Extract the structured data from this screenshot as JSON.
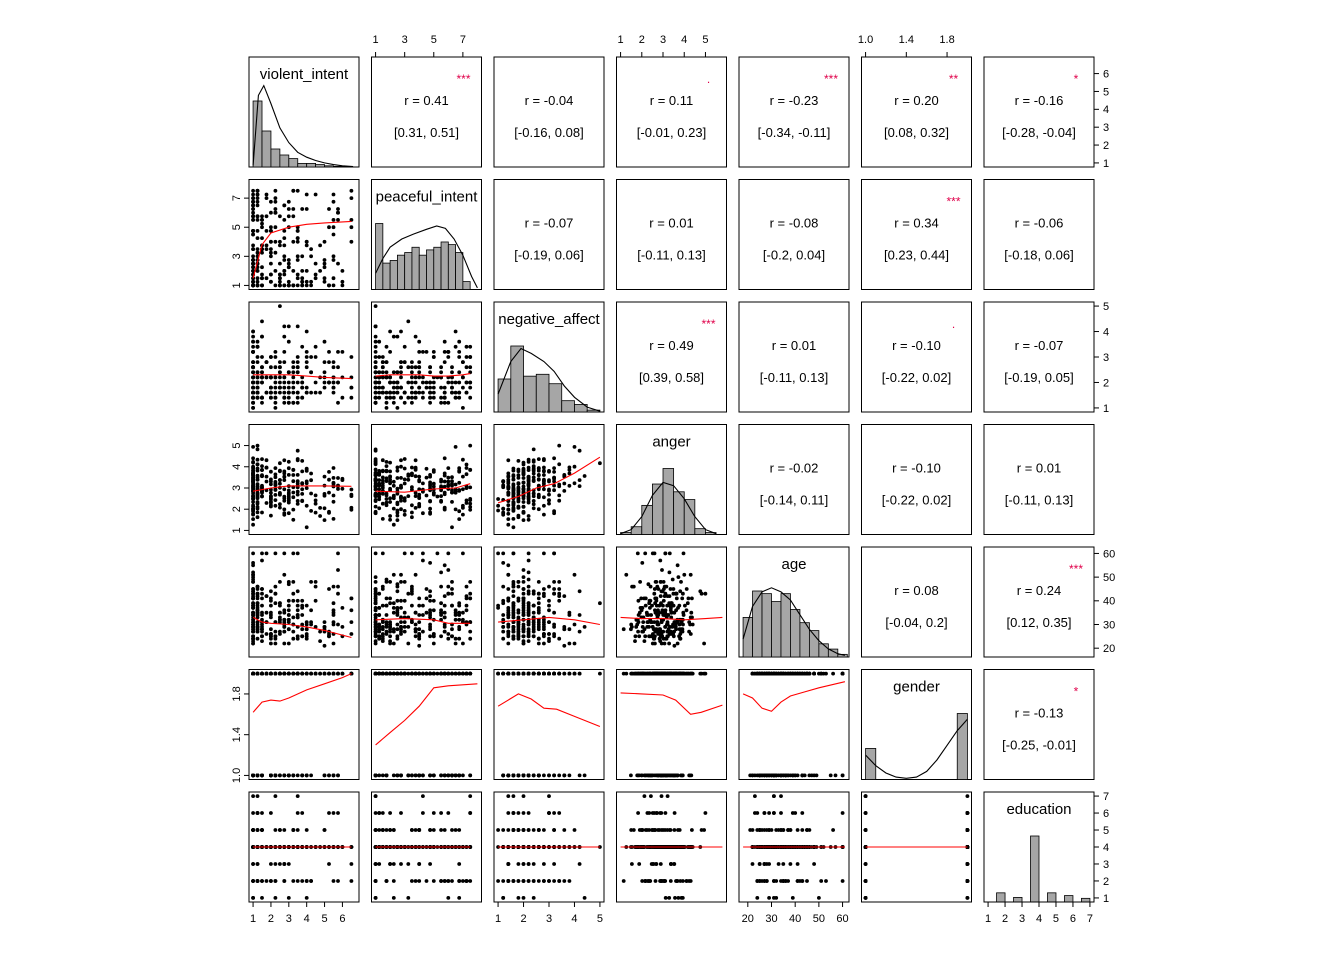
{
  "chart_data": {
    "type": "scatter",
    "variables": [
      "violent_intent",
      "peaceful_intent",
      "negative_affect",
      "anger",
      "age",
      "gender",
      "education"
    ],
    "ranges": [
      [
        1,
        6.7
      ],
      [
        1,
        8
      ],
      [
        1,
        5
      ],
      [
        1,
        5.8
      ],
      [
        18,
        61
      ],
      [
        1,
        2
      ],
      [
        1,
        7
      ]
    ],
    "ticks": [
      [
        1,
        2,
        3,
        4,
        5,
        6
      ],
      [
        1,
        3,
        5,
        7
      ],
      [
        1,
        2,
        3,
        4,
        5
      ],
      [
        1,
        2,
        3,
        4,
        5
      ],
      [
        20,
        30,
        40,
        50,
        60
      ],
      [
        1.0,
        1.4,
        1.8
      ],
      [
        1,
        2,
        3,
        4,
        5,
        6,
        7
      ]
    ],
    "tick_labels": [
      [
        "1",
        "2",
        "3",
        "4",
        "5",
        "6"
      ],
      [
        "1",
        "3",
        "5",
        "7"
      ],
      [
        "1",
        "2",
        "3",
        "4",
        "5"
      ],
      [
        "1",
        "2",
        "3",
        "4",
        "5"
      ],
      [
        "20",
        "30",
        "40",
        "50",
        "60"
      ],
      [
        "1.0",
        "1.4",
        "1.8"
      ],
      [
        "1",
        "2",
        "3",
        "4",
        "5",
        "6",
        "7"
      ]
    ],
    "correlations": [
      {
        "row": 0,
        "col": 1,
        "r": "r  = 0.41",
        "ci": "[0.31, 0.51]",
        "stars": "***"
      },
      {
        "row": 0,
        "col": 2,
        "r": "r  = -0.04",
        "ci": "[-0.16, 0.08]",
        "stars": ""
      },
      {
        "row": 0,
        "col": 3,
        "r": "r  = 0.11",
        "ci": "[-0.01, 0.23]",
        "stars": "."
      },
      {
        "row": 0,
        "col": 4,
        "r": "r  = -0.23",
        "ci": "[-0.34, -0.11]",
        "stars": "***"
      },
      {
        "row": 0,
        "col": 5,
        "r": "r  = 0.20",
        "ci": "[0.08, 0.32]",
        "stars": "**"
      },
      {
        "row": 0,
        "col": 6,
        "r": "r  = -0.16",
        "ci": "[-0.28, -0.04]",
        "stars": "*"
      },
      {
        "row": 1,
        "col": 2,
        "r": "r  = -0.07",
        "ci": "[-0.19, 0.06]",
        "stars": ""
      },
      {
        "row": 1,
        "col": 3,
        "r": "r  = 0.01",
        "ci": "[-0.11, 0.13]",
        "stars": ""
      },
      {
        "row": 1,
        "col": 4,
        "r": "r  = -0.08",
        "ci": "[-0.2, 0.04]",
        "stars": ""
      },
      {
        "row": 1,
        "col": 5,
        "r": "r  = 0.34",
        "ci": "[0.23, 0.44]",
        "stars": "***"
      },
      {
        "row": 1,
        "col": 6,
        "r": "r  = -0.06",
        "ci": "[-0.18, 0.06]",
        "stars": ""
      },
      {
        "row": 2,
        "col": 3,
        "r": "r  = 0.49",
        "ci": "[0.39, 0.58]",
        "stars": "***"
      },
      {
        "row": 2,
        "col": 4,
        "r": "r  = 0.01",
        "ci": "[-0.11, 0.13]",
        "stars": ""
      },
      {
        "row": 2,
        "col": 5,
        "r": "r  = -0.10",
        "ci": "[-0.22, 0.02]",
        "stars": "."
      },
      {
        "row": 2,
        "col": 6,
        "r": "r  = -0.07",
        "ci": "[-0.19, 0.05]",
        "stars": ""
      },
      {
        "row": 3,
        "col": 4,
        "r": "r  = -0.02",
        "ci": "[-0.14, 0.11]",
        "stars": ""
      },
      {
        "row": 3,
        "col": 5,
        "r": "r  = -0.10",
        "ci": "[-0.22, 0.02]",
        "stars": ""
      },
      {
        "row": 3,
        "col": 6,
        "r": "r  = 0.01",
        "ci": "[-0.11, 0.13]",
        "stars": ""
      },
      {
        "row": 4,
        "col": 5,
        "r": "r  = 0.08",
        "ci": "[-0.04, 0.2]",
        "stars": ""
      },
      {
        "row": 4,
        "col": 6,
        "r": "r  = 0.24",
        "ci": "[0.12, 0.35]",
        "stars": "***"
      },
      {
        "row": 5,
        "col": 6,
        "r": "r  = -0.13",
        "ci": "[-0.25, -0.01]",
        "stars": "*"
      }
    ],
    "histograms": [
      {
        "var": 0,
        "breaks": [
          1,
          1.5,
          2,
          2.5,
          3,
          3.5,
          4,
          4.5,
          5,
          5.5,
          6,
          6.5
        ],
        "counts": [
          110,
          60,
          30,
          20,
          14,
          6,
          6,
          4,
          2,
          1,
          1
        ],
        "density": [
          [
            1,
            0.02
          ],
          [
            1.3,
            0.88
          ],
          [
            1.6,
            1.0
          ],
          [
            2.0,
            0.78
          ],
          [
            2.5,
            0.48
          ],
          [
            3.0,
            0.3
          ],
          [
            3.5,
            0.18
          ],
          [
            4.0,
            0.12
          ],
          [
            4.5,
            0.08
          ],
          [
            5.0,
            0.05
          ],
          [
            5.5,
            0.03
          ],
          [
            6.0,
            0.015
          ],
          [
            6.6,
            0.005
          ]
        ]
      },
      {
        "var": 1,
        "breaks": [
          1,
          1.5,
          2,
          2.5,
          3,
          3.5,
          4,
          4.5,
          5,
          5.5,
          6,
          6.5,
          7,
          7.5
        ],
        "counts": [
          25,
          10,
          11,
          13,
          14,
          16,
          13,
          15,
          16,
          18,
          17,
          14,
          3
        ],
        "density": [
          [
            1,
            0.2
          ],
          [
            1.5,
            0.38
          ],
          [
            2.0,
            0.52
          ],
          [
            2.8,
            0.62
          ],
          [
            3.6,
            0.68
          ],
          [
            4.5,
            0.74
          ],
          [
            5.2,
            0.78
          ],
          [
            5.8,
            0.75
          ],
          [
            6.4,
            0.62
          ],
          [
            7.0,
            0.42
          ],
          [
            7.6,
            0.16
          ],
          [
            8.0,
            0.02
          ]
        ]
      },
      {
        "var": 2,
        "breaks": [
          1,
          1.5,
          2,
          2.5,
          3,
          3.5,
          4,
          4.5,
          5
        ],
        "counts": [
          35,
          70,
          38,
          40,
          30,
          12,
          8,
          2
        ],
        "density": [
          [
            1,
            0.22
          ],
          [
            1.5,
            0.62
          ],
          [
            1.9,
            0.78
          ],
          [
            2.3,
            0.72
          ],
          [
            2.8,
            0.62
          ],
          [
            3.2,
            0.5
          ],
          [
            3.6,
            0.32
          ],
          [
            4.0,
            0.18
          ],
          [
            4.5,
            0.06
          ],
          [
            5.0,
            0.01
          ]
        ]
      },
      {
        "var": 3,
        "breaks": [
          1,
          1.5,
          2,
          2.5,
          3,
          3.5,
          4,
          4.5,
          5,
          5.5
        ],
        "counts": [
          2,
          8,
          30,
          52,
          68,
          44,
          36,
          6,
          2
        ],
        "density": [
          [
            1.0,
            0.01
          ],
          [
            1.5,
            0.06
          ],
          [
            2.0,
            0.22
          ],
          [
            2.5,
            0.48
          ],
          [
            3.0,
            0.64
          ],
          [
            3.5,
            0.6
          ],
          [
            4.0,
            0.44
          ],
          [
            4.5,
            0.22
          ],
          [
            5.0,
            0.06
          ],
          [
            5.5,
            0.01
          ]
        ]
      },
      {
        "var": 4,
        "breaks": [
          18,
          22,
          26,
          30,
          34,
          38,
          42,
          46,
          50,
          54,
          58,
          62
        ],
        "counts": [
          30,
          50,
          48,
          42,
          48,
          36,
          26,
          20,
          10,
          6,
          2
        ],
        "density": [
          [
            18,
            0.22
          ],
          [
            22,
            0.62
          ],
          [
            26,
            0.8
          ],
          [
            30,
            0.85
          ],
          [
            34,
            0.8
          ],
          [
            38,
            0.7
          ],
          [
            42,
            0.52
          ],
          [
            46,
            0.34
          ],
          [
            50,
            0.2
          ],
          [
            54,
            0.1
          ],
          [
            58,
            0.04
          ],
          [
            61,
            0.02
          ]
        ]
      },
      {
        "var": 5,
        "breaks": [
          1.0,
          1.1,
          1.9,
          2.0
        ],
        "counts": [
          32,
          0,
          68
        ],
        "density": [
          [
            1.0,
            0.3
          ],
          [
            1.1,
            0.17
          ],
          [
            1.2,
            0.08
          ],
          [
            1.3,
            0.03
          ],
          [
            1.4,
            0.015
          ],
          [
            1.5,
            0.03
          ],
          [
            1.6,
            0.1
          ],
          [
            1.7,
            0.24
          ],
          [
            1.8,
            0.42
          ],
          [
            1.9,
            0.6
          ],
          [
            2.0,
            0.74
          ]
        ]
      },
      {
        "var": 6,
        "breaks": [
          1,
          1.5,
          2,
          2.5,
          3,
          3.5,
          4,
          4.5,
          5,
          5.5,
          6,
          6.5,
          7
        ],
        "counts": [
          0,
          10,
          0,
          5,
          0,
          72,
          0,
          10,
          0,
          7,
          0,
          4
        ]
      }
    ],
    "loess": [
      {
        "row": 1,
        "col": 0,
        "points": [
          [
            1,
            1.5
          ],
          [
            1.5,
            3.8
          ],
          [
            2,
            4.6
          ],
          [
            3,
            5.0
          ],
          [
            4,
            5.2
          ],
          [
            5,
            5.3
          ],
          [
            6.5,
            5.4
          ]
        ]
      },
      {
        "row": 2,
        "col": 0,
        "points": [
          [
            1,
            2.3
          ],
          [
            2,
            2.3
          ],
          [
            3,
            2.3
          ],
          [
            4,
            2.25
          ],
          [
            5,
            2.2
          ],
          [
            6.5,
            2.15
          ]
        ]
      },
      {
        "row": 2,
        "col": 1,
        "points": [
          [
            1,
            2.25
          ],
          [
            2,
            2.3
          ],
          [
            3,
            2.3
          ],
          [
            4,
            2.3
          ],
          [
            5,
            2.25
          ],
          [
            6,
            2.25
          ],
          [
            7,
            2.3
          ],
          [
            7.5,
            2.35
          ]
        ]
      },
      {
        "row": 3,
        "col": 0,
        "points": [
          [
            1,
            2.85
          ],
          [
            2,
            3.0
          ],
          [
            3,
            3.1
          ],
          [
            4,
            3.1
          ],
          [
            5,
            3.1
          ],
          [
            6.5,
            3.08
          ]
        ]
      },
      {
        "row": 3,
        "col": 1,
        "points": [
          [
            1,
            2.85
          ],
          [
            3,
            2.8
          ],
          [
            5,
            2.95
          ],
          [
            6.5,
            3.0
          ],
          [
            7.5,
            3.2
          ]
        ]
      },
      {
        "row": 3,
        "col": 2,
        "points": [
          [
            1,
            2.3
          ],
          [
            1.8,
            2.6
          ],
          [
            2.5,
            3.0
          ],
          [
            3.2,
            3.2
          ],
          [
            4,
            3.7
          ],
          [
            5,
            4.45
          ]
        ]
      },
      {
        "row": 4,
        "col": 0,
        "points": [
          [
            1,
            33
          ],
          [
            1.5,
            31
          ],
          [
            2,
            30.5
          ],
          [
            3,
            30
          ],
          [
            4,
            29
          ],
          [
            5,
            27.5
          ],
          [
            6.5,
            24.5
          ]
        ]
      },
      {
        "row": 4,
        "col": 1,
        "points": [
          [
            1,
            32
          ],
          [
            3,
            32.5
          ],
          [
            5,
            32
          ],
          [
            6,
            30.5
          ],
          [
            7.5,
            30.5
          ]
        ]
      },
      {
        "row": 4,
        "col": 2,
        "points": [
          [
            1,
            31
          ],
          [
            2,
            32
          ],
          [
            3,
            33
          ],
          [
            4,
            32
          ],
          [
            5,
            30
          ]
        ]
      },
      {
        "row": 4,
        "col": 3,
        "points": [
          [
            1,
            33
          ],
          [
            2,
            32.5
          ],
          [
            3,
            32.5
          ],
          [
            4,
            32
          ],
          [
            5,
            32.5
          ],
          [
            5.8,
            33
          ]
        ]
      },
      {
        "row": 5,
        "col": 0,
        "points": [
          [
            1,
            1.62
          ],
          [
            1.5,
            1.72
          ],
          [
            2,
            1.74
          ],
          [
            2.5,
            1.73
          ],
          [
            3,
            1.76
          ],
          [
            4,
            1.84
          ],
          [
            5,
            1.9
          ],
          [
            6,
            1.96
          ],
          [
            6.5,
            2.0
          ]
        ]
      },
      {
        "row": 5,
        "col": 1,
        "points": [
          [
            1,
            1.3
          ],
          [
            2,
            1.42
          ],
          [
            3,
            1.54
          ],
          [
            4,
            1.68
          ],
          [
            5,
            1.86
          ],
          [
            6,
            1.88
          ],
          [
            7,
            1.89
          ],
          [
            8,
            1.9
          ]
        ]
      },
      {
        "row": 5,
        "col": 2,
        "points": [
          [
            1,
            1.68
          ],
          [
            1.8,
            1.8
          ],
          [
            2.3,
            1.75
          ],
          [
            2.8,
            1.66
          ],
          [
            3.3,
            1.65
          ],
          [
            4,
            1.58
          ],
          [
            5,
            1.48
          ]
        ]
      },
      {
        "row": 5,
        "col": 3,
        "points": [
          [
            1,
            1.81
          ],
          [
            2,
            1.8
          ],
          [
            3,
            1.79
          ],
          [
            3.6,
            1.74
          ],
          [
            4.3,
            1.6
          ],
          [
            4.8,
            1.62
          ],
          [
            5.8,
            1.69
          ]
        ]
      },
      {
        "row": 5,
        "col": 4,
        "points": [
          [
            18,
            1.8
          ],
          [
            22,
            1.76
          ],
          [
            26,
            1.66
          ],
          [
            30,
            1.63
          ],
          [
            34,
            1.72
          ],
          [
            38,
            1.78
          ],
          [
            44,
            1.82
          ],
          [
            50,
            1.86
          ],
          [
            61,
            1.92
          ]
        ]
      },
      {
        "row": 6,
        "col": 0,
        "points": [
          [
            1,
            4
          ],
          [
            6.5,
            4
          ]
        ]
      },
      {
        "row": 6,
        "col": 1,
        "points": [
          [
            1,
            4
          ],
          [
            7.5,
            4
          ]
        ]
      },
      {
        "row": 6,
        "col": 2,
        "points": [
          [
            1,
            4
          ],
          [
            5,
            4
          ]
        ]
      },
      {
        "row": 6,
        "col": 3,
        "points": [
          [
            1,
            4
          ],
          [
            5.8,
            4
          ]
        ]
      },
      {
        "row": 6,
        "col": 4,
        "points": [
          [
            18,
            4
          ],
          [
            61,
            4
          ]
        ]
      },
      {
        "row": 6,
        "col": 5,
        "points": [
          [
            1,
            4
          ],
          [
            2,
            4
          ]
        ]
      }
    ]
  }
}
